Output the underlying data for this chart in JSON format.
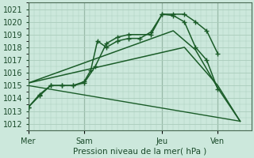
{
  "xlabel": "Pression niveau de la mer( hPa )",
  "ylim": [
    1012,
    1021
  ],
  "background_color": "#cce8dc",
  "grid_color": "#aaccbb",
  "line_color_dark": "#1a5c28",
  "line_color_med": "#2a7a38",
  "day_labels": [
    "Mer",
    "Sam",
    "Jeu",
    "Ven"
  ],
  "day_positions": [
    0.0,
    2.5,
    6.0,
    8.5
  ],
  "xlim": [
    0,
    10
  ],
  "lines": [
    {
      "x": [
        0.0,
        0.5,
        1.0,
        1.5,
        2.0,
        2.5,
        3.0,
        3.5,
        4.0,
        4.5,
        5.5,
        6.0,
        6.5,
        7.0,
        7.5,
        8.0,
        8.5
      ],
      "y": [
        1013.3,
        1014.3,
        1015.0,
        1015.0,
        1015.0,
        1015.2,
        1016.5,
        1018.3,
        1018.8,
        1019.0,
        1019.0,
        1020.6,
        1020.6,
        1020.6,
        1020.0,
        1019.3,
        1017.5
      ],
      "marker": true,
      "linewidth": 1.1
    },
    {
      "x": [
        0.0,
        0.5,
        1.0,
        1.5,
        2.0,
        2.5,
        2.8,
        3.1,
        3.5,
        4.0,
        4.5,
        5.0,
        5.5,
        6.0,
        6.5,
        7.0,
        7.5,
        8.0,
        8.5
      ],
      "y": [
        1013.3,
        1014.2,
        1015.0,
        1015.0,
        1015.0,
        1015.3,
        1016.2,
        1018.5,
        1018.0,
        1018.5,
        1018.7,
        1018.7,
        1019.2,
        1020.6,
        1020.5,
        1020.0,
        1018.0,
        1017.0,
        1014.7
      ],
      "marker": true,
      "linewidth": 1.1
    },
    {
      "x": [
        0.0,
        6.5,
        7.5,
        8.5,
        9.5
      ],
      "y": [
        1015.2,
        1019.3,
        1017.8,
        1014.8,
        1012.2
      ],
      "marker": false,
      "linewidth": 1.1
    },
    {
      "x": [
        0.0,
        7.0,
        8.5,
        9.5
      ],
      "y": [
        1015.2,
        1018.0,
        1015.0,
        1012.2
      ],
      "marker": false,
      "linewidth": 1.1
    },
    {
      "x": [
        0.0,
        9.5
      ],
      "y": [
        1015.0,
        1012.2
      ],
      "marker": false,
      "linewidth": 1.0
    }
  ]
}
